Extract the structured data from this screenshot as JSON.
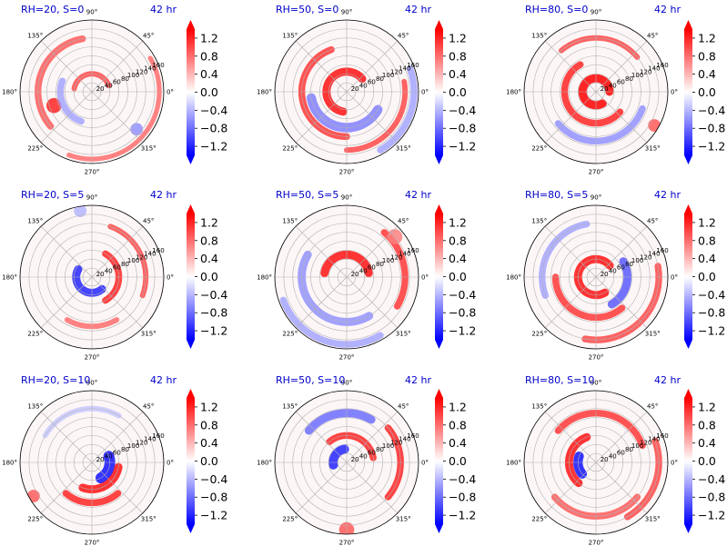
{
  "figure": {
    "time_label": "42 hr",
    "colors": {
      "title": "#0000cc",
      "positive": "#ff0000",
      "negative": "#0000ff",
      "grid": "#b0b0b0"
    }
  },
  "chart_data": [
    {
      "type": "polar-heatmap",
      "title": "RH=20, S=0",
      "time": "42 hr",
      "angle_ticks": [
        "90°",
        "45°",
        "0°",
        "315°",
        "270°",
        "225°",
        "180°",
        "135°"
      ],
      "radial_ticks": [
        "20",
        "40",
        "60",
        "80",
        "100",
        "120",
        "140",
        "160"
      ],
      "colorbar_ticks": [
        "1.2",
        "0.8",
        "0.4",
        "0.0",
        "−0.4",
        "−0.8",
        "−1.2"
      ],
      "clim": [
        -1.4,
        1.4
      ],
      "colormap": "bwr",
      "features": [
        {
          "kind": "band",
          "r": 40,
          "theta": 20,
          "len": 150,
          "w": 8,
          "v": 1.0
        },
        {
          "kind": "band",
          "r": 120,
          "theta": 100,
          "len": 120,
          "w": 10,
          "v": 0.9
        },
        {
          "kind": "blob",
          "r": 90,
          "theta": 200,
          "size": 12,
          "v": 1.2
        },
        {
          "kind": "band",
          "r": 150,
          "theta": 250,
          "len": 140,
          "w": 7,
          "v": 0.8
        },
        {
          "kind": "band",
          "r": 70,
          "theta": 160,
          "len": 90,
          "w": 10,
          "v": -0.5
        },
        {
          "kind": "blob",
          "r": 130,
          "theta": 320,
          "size": 10,
          "v": -0.6
        }
      ]
    },
    {
      "type": "polar-heatmap",
      "title": "RH=50, S=0",
      "time": "42 hr",
      "angle_ticks": [
        "90°",
        "45°",
        "0°",
        "315°",
        "270°",
        "225°",
        "180°",
        "135°"
      ],
      "radial_ticks": [
        "20",
        "40",
        "60",
        "80",
        "100",
        "120",
        "140",
        "160"
      ],
      "colorbar_ticks": [
        "1.2",
        "0.8",
        "0.4",
        "0.0",
        "−0.4",
        "−0.8",
        "−1.2"
      ],
      "clim": [
        -1.4,
        1.4
      ],
      "colormap": "bwr",
      "features": [
        {
          "kind": "band",
          "r": 45,
          "theta": 40,
          "len": 220,
          "w": 12,
          "v": 1.3
        },
        {
          "kind": "band",
          "r": 100,
          "theta": 110,
          "len": 160,
          "w": 10,
          "v": 1.1
        },
        {
          "kind": "band",
          "r": 130,
          "theta": 270,
          "len": 100,
          "w": 8,
          "v": 1.0
        },
        {
          "kind": "band",
          "r": 80,
          "theta": 190,
          "len": 140,
          "w": 14,
          "v": -0.7
        },
        {
          "kind": "band",
          "r": 150,
          "theta": 300,
          "len": 80,
          "w": 10,
          "v": -0.5
        }
      ]
    },
    {
      "type": "polar-heatmap",
      "title": "RH=80, S=0",
      "time": "42 hr",
      "angle_ticks": [
        "90°",
        "45°",
        "0°",
        "315°",
        "270°",
        "225°",
        "180°",
        "135°"
      ],
      "radial_ticks": [
        "20",
        "40",
        "60",
        "80",
        "100",
        "120",
        "140",
        "160"
      ],
      "colorbar_ticks": [
        "1.2",
        "0.8",
        "0.4",
        "0.0",
        "−0.4",
        "−0.8",
        "−1.2"
      ],
      "clim": [
        -1.4,
        1.4
      ],
      "colormap": "bwr",
      "features": [
        {
          "kind": "band",
          "r": 30,
          "theta": 0,
          "len": 300,
          "w": 12,
          "v": 1.4
        },
        {
          "kind": "band",
          "r": 70,
          "theta": 120,
          "len": 200,
          "w": 10,
          "v": 1.2
        },
        {
          "kind": "band",
          "r": 120,
          "theta": 40,
          "len": 90,
          "w": 8,
          "v": 1.0
        },
        {
          "kind": "band",
          "r": 110,
          "theta": 220,
          "len": 120,
          "w": 10,
          "v": -0.6
        },
        {
          "kind": "blob",
          "r": 150,
          "theta": 330,
          "size": 10,
          "v": 0.9
        }
      ]
    },
    {
      "type": "polar-heatmap",
      "title": "RH=20, S=5",
      "time": "42 hr",
      "angle_ticks": [
        "90°",
        "45°",
        "0°",
        "315°",
        "270°",
        "225°",
        "180°",
        "135°"
      ],
      "radial_ticks": [
        "20",
        "40",
        "60",
        "80",
        "100",
        "120",
        "140",
        "160"
      ],
      "colorbar_ticks": [
        "1.2",
        "0.8",
        "0.4",
        "0.0",
        "−0.4",
        "−0.8",
        "−1.2"
      ],
      "clim": [
        -1.4,
        1.4
      ],
      "colormap": "bwr",
      "features": [
        {
          "kind": "band",
          "r": 35,
          "theta": 150,
          "len": 160,
          "w": 12,
          "v": -1.2
        },
        {
          "kind": "band",
          "r": 60,
          "theta": 300,
          "len": 120,
          "w": 10,
          "v": 1.2
        },
        {
          "kind": "band",
          "r": 120,
          "theta": 340,
          "len": 90,
          "w": 8,
          "v": 1.0
        },
        {
          "kind": "band",
          "r": 110,
          "theta": 240,
          "len": 60,
          "w": 8,
          "v": 0.8
        },
        {
          "kind": "blob",
          "r": 150,
          "theta": 100,
          "size": 10,
          "v": -0.4
        }
      ]
    },
    {
      "type": "polar-heatmap",
      "title": "RH=50, S=5",
      "time": "42 hr",
      "angle_ticks": [
        "90°",
        "45°",
        "0°",
        "315°",
        "270°",
        "225°",
        "180°",
        "135°"
      ],
      "radial_ticks": [
        "20",
        "40",
        "60",
        "80",
        "100",
        "120",
        "140",
        "160"
      ],
      "colorbar_ticks": [
        "1.2",
        "0.8",
        "0.4",
        "0.0",
        "−0.4",
        "−0.8",
        "−1.2"
      ],
      "clim": [
        -1.4,
        1.4
      ],
      "colormap": "bwr",
      "features": [
        {
          "kind": "band",
          "r": 50,
          "theta": 10,
          "len": 160,
          "w": 12,
          "v": 1.3
        },
        {
          "kind": "band",
          "r": 130,
          "theta": 330,
          "len": 80,
          "w": 10,
          "v": 1.1
        },
        {
          "kind": "band",
          "r": 100,
          "theta": 150,
          "len": 150,
          "w": 12,
          "v": -0.6
        },
        {
          "kind": "band",
          "r": 150,
          "theta": 200,
          "len": 100,
          "w": 10,
          "v": -0.5
        },
        {
          "kind": "blob",
          "r": 140,
          "theta": 40,
          "size": 12,
          "v": 0.7
        }
      ]
    },
    {
      "type": "polar-heatmap",
      "title": "RH=80, S=5",
      "time": "42 hr",
      "angle_ticks": [
        "90°",
        "45°",
        "0°",
        "315°",
        "270°",
        "225°",
        "180°",
        "135°"
      ],
      "radial_ticks": [
        "20",
        "40",
        "60",
        "80",
        "100",
        "120",
        "140",
        "160"
      ],
      "colorbar_ticks": [
        "1.2",
        "0.8",
        "0.4",
        "0.0",
        "−0.4",
        "−0.8",
        "−1.2"
      ],
      "clim": [
        -1.4,
        1.4
      ],
      "colormap": "bwr",
      "features": [
        {
          "kind": "band",
          "r": 40,
          "theta": 40,
          "len": 260,
          "w": 12,
          "v": 1.3
        },
        {
          "kind": "band",
          "r": 90,
          "theta": 180,
          "len": 130,
          "w": 10,
          "v": 1.1
        },
        {
          "kind": "band",
          "r": 140,
          "theta": 260,
          "len": 110,
          "w": 10,
          "v": 1.0
        },
        {
          "kind": "band",
          "r": 70,
          "theta": 300,
          "len": 90,
          "w": 12,
          "v": -0.9
        },
        {
          "kind": "band",
          "r": 120,
          "theta": 100,
          "len": 100,
          "w": 10,
          "v": -0.5
        }
      ]
    },
    {
      "type": "polar-heatmap",
      "title": "RH=20, S=10",
      "time": "42 hr",
      "angle_ticks": [
        "90°",
        "45°",
        "0°",
        "315°",
        "270°",
        "225°",
        "180°",
        "135°"
      ],
      "radial_ticks": [
        "20",
        "40",
        "60",
        "80",
        "100",
        "120",
        "140",
        "160"
      ],
      "colorbar_ticks": [
        "1.2",
        "0.8",
        "0.4",
        "0.0",
        "−0.4",
        "−0.8",
        "−1.2"
      ],
      "clim": [
        -1.4,
        1.4
      ],
      "colormap": "bwr",
      "features": [
        {
          "kind": "band",
          "r": 40,
          "theta": 300,
          "len": 80,
          "w": 16,
          "v": -1.3
        },
        {
          "kind": "band",
          "r": 60,
          "theta": 250,
          "len": 100,
          "w": 12,
          "v": 1.3
        },
        {
          "kind": "band",
          "r": 90,
          "theta": 230,
          "len": 80,
          "w": 10,
          "v": 1.2
        },
        {
          "kind": "blob",
          "r": 150,
          "theta": 210,
          "size": 10,
          "v": 0.9
        },
        {
          "kind": "band",
          "r": 120,
          "theta": 60,
          "len": 90,
          "w": 8,
          "v": -0.3
        }
      ]
    },
    {
      "type": "polar-heatmap",
      "title": "RH=50, S=10",
      "time": "42 hr",
      "angle_ticks": [
        "90°",
        "45°",
        "0°",
        "315°",
        "270°",
        "225°",
        "180°",
        "135°"
      ],
      "radial_ticks": [
        "20",
        "40",
        "60",
        "80",
        "100",
        "120",
        "140",
        "160"
      ],
      "colorbar_ticks": [
        "1.2",
        "0.8",
        "0.4",
        "0.0",
        "−0.4",
        "−0.8",
        "−1.2"
      ],
      "clim": [
        -1.4,
        1.4
      ],
      "colormap": "bwr",
      "features": [
        {
          "kind": "band",
          "r": 30,
          "theta": 100,
          "len": 90,
          "w": 14,
          "v": -1.2
        },
        {
          "kind": "band",
          "r": 60,
          "theta": 10,
          "len": 120,
          "w": 10,
          "v": 1.2
        },
        {
          "kind": "band",
          "r": 120,
          "theta": 320,
          "len": 80,
          "w": 10,
          "v": 1.2
        },
        {
          "kind": "band",
          "r": 110,
          "theta": 60,
          "len": 80,
          "w": 12,
          "v": -0.8
        },
        {
          "kind": "blob",
          "r": 150,
          "theta": 270,
          "size": 12,
          "v": 0.9
        }
      ]
    },
    {
      "type": "polar-heatmap",
      "title": "RH=80, S=10",
      "time": "42 hr",
      "angle_ticks": [
        "90°",
        "45°",
        "0°",
        "315°",
        "270°",
        "225°",
        "180°",
        "135°"
      ],
      "radial_ticks": [
        "20",
        "40",
        "60",
        "80",
        "100",
        "120",
        "140",
        "160"
      ],
      "colorbar_ticks": [
        "1.2",
        "0.8",
        "0.4",
        "0.0",
        "−0.4",
        "−0.8",
        "−1.2"
      ],
      "clim": [
        -1.4,
        1.4
      ],
      "colormap": "bwr",
      "features": [
        {
          "kind": "band",
          "r": 60,
          "theta": 110,
          "len": 120,
          "w": 12,
          "v": 1.3
        },
        {
          "kind": "band",
          "r": 40,
          "theta": 160,
          "len": 60,
          "w": 14,
          "v": -1.3
        },
        {
          "kind": "band",
          "r": 110,
          "theta": 20,
          "len": 120,
          "w": 10,
          "v": 1.1
        },
        {
          "kind": "band",
          "r": 140,
          "theta": 300,
          "len": 80,
          "w": 10,
          "v": 1.0
        },
        {
          "kind": "band",
          "r": 120,
          "theta": 220,
          "len": 100,
          "w": 10,
          "v": 0.9
        }
      ]
    }
  ]
}
